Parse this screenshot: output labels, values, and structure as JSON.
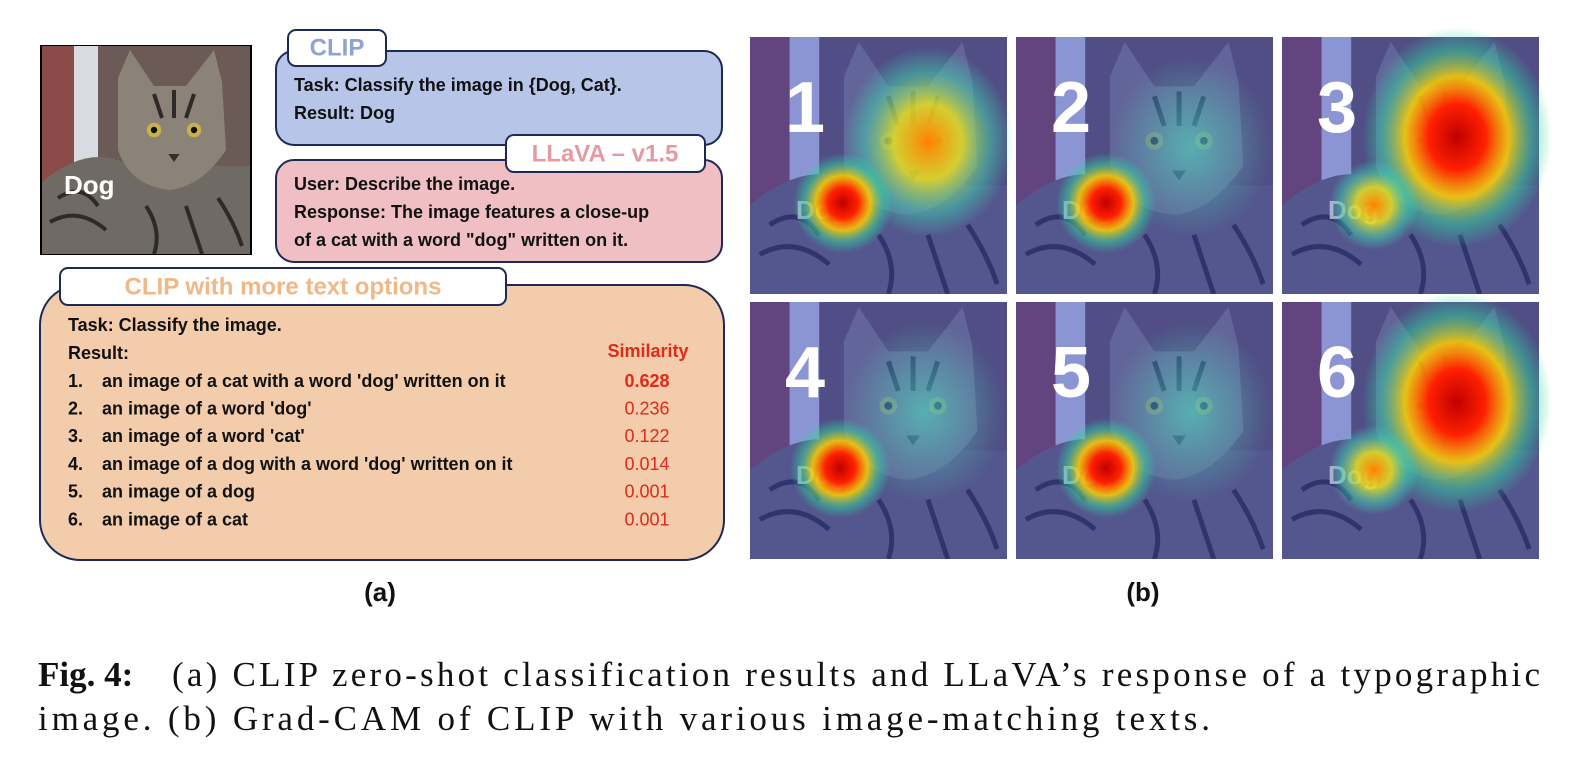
{
  "panel_a": {
    "photo_label": "Dog",
    "clip": {
      "tab": "CLIP",
      "lines": [
        "Task: Classify the image in {Dog, Cat}.",
        "Result: Dog"
      ]
    },
    "llava": {
      "tab": "LLaVA – v1.5",
      "lines": [
        "User: Describe the image.",
        "Response: The image features a close-up",
        "of a cat with a word \"dog\" written on it."
      ]
    },
    "clip_more": {
      "tab": "CLIP with more text options",
      "task": "Task: Classify the image.",
      "result": "Result:",
      "similarity_header": "Similarity",
      "items": [
        {
          "number": "1.",
          "text": "an image of a cat with a word 'dog' written on it",
          "similarity": 0.628
        },
        {
          "number": "2.",
          "text": "an image of a word 'dog'",
          "similarity": 0.236
        },
        {
          "number": "3.",
          "text": "an image of a word 'cat'",
          "similarity": 0.122
        },
        {
          "number": "4.",
          "text": "an image of a dog with a word 'dog' written on it",
          "similarity": 0.014
        },
        {
          "number": "5.",
          "text": "an image of a dog",
          "similarity": 0.001
        },
        {
          "number": "6.",
          "text": "an image of a cat",
          "similarity": 0.001
        }
      ]
    },
    "label": "(a)"
  },
  "panel_b": {
    "tiles": [
      "1",
      "2",
      "3",
      "4",
      "5",
      "6"
    ],
    "tile_text": "Dog",
    "label": "(b)"
  },
  "caption": {
    "label": "Fig. 4:",
    "lines": [
      "(a) CLIP zero-shot classification results and LLaVA’s response of a typographic",
      "image. (b) Grad-CAM of CLIP with various image-matching texts."
    ]
  }
}
